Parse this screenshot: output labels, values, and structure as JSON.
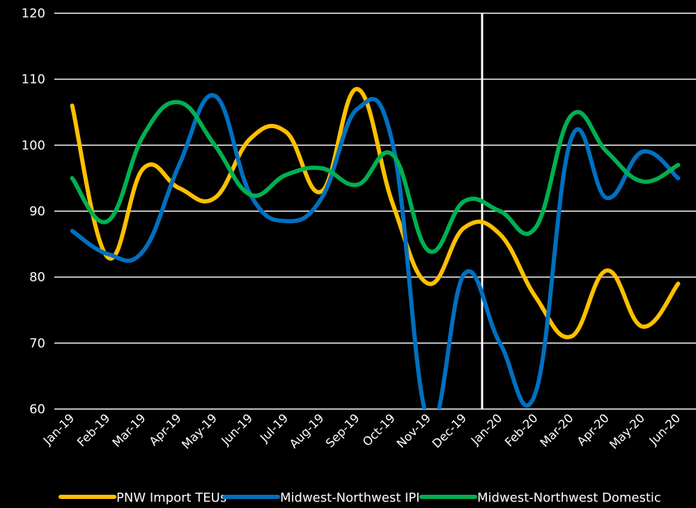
{
  "chart_data": {
    "type": "line",
    "categories": [
      "Jan-19",
      "Feb-19",
      "Mar-19",
      "Apr-19",
      "May-19",
      "Jun-19",
      "Jul-19",
      "Aug-19",
      "Sep-19",
      "Oct-19",
      "Nov-19",
      "Dec-19",
      "Jan-20",
      "Feb-20",
      "Mar-20",
      "Apr-20",
      "May-20",
      "Jun-20"
    ],
    "ylim": [
      60,
      120
    ],
    "yticks": [
      "60",
      "70",
      "80",
      "90",
      "100",
      "110",
      "120"
    ],
    "grid": true,
    "marker_line": {
      "category": "Jan-20",
      "color": "#ffffff"
    },
    "legend_position": "bottom",
    "series": [
      {
        "name": "PNW Import TEUs",
        "color": "#FFC000",
        "values": [
          106,
          83,
          96.5,
          93.5,
          92,
          101,
          102,
          93,
          108.5,
          91,
          79,
          87.5,
          86.5,
          77,
          71,
          81,
          72.5,
          79
        ]
      },
      {
        "name": "Midwest-Northwest IPI",
        "color": "#0070C0",
        "values": [
          87,
          83.5,
          84,
          97,
          107.5,
          92.5,
          88.5,
          92,
          105.5,
          100,
          58,
          80.5,
          70,
          62.5,
          101,
          92,
          99,
          95
        ]
      },
      {
        "name": "Midwest-Northwest Domestic",
        "color": "#00B050",
        "values": [
          95,
          88.5,
          101.5,
          106.5,
          100,
          92.5,
          95.5,
          96.5,
          94,
          98.5,
          84,
          91.5,
          90,
          87.5,
          104.5,
          99,
          94.5,
          97
        ]
      }
    ]
  }
}
